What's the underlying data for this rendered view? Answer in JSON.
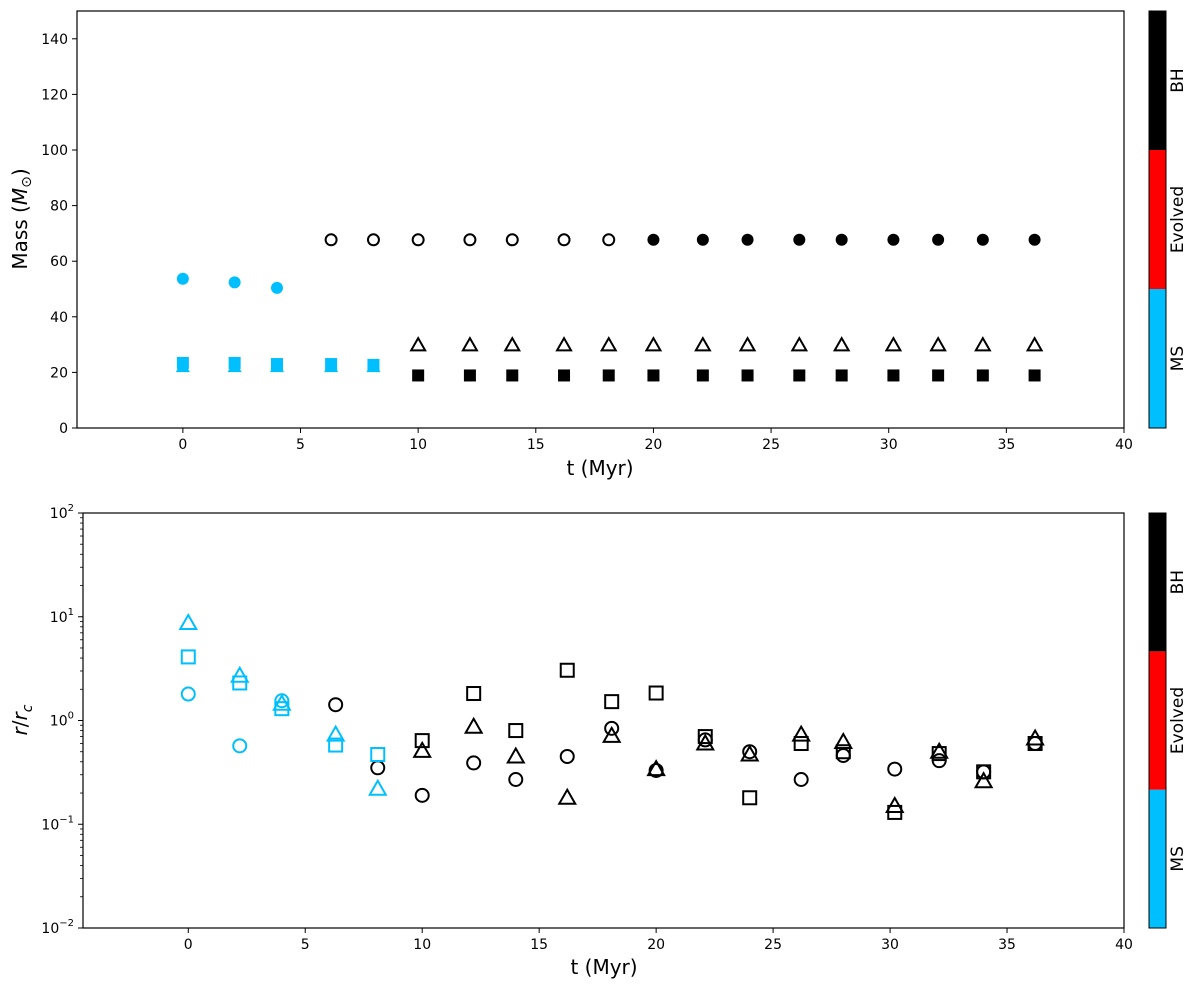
{
  "colors": {
    "MS": "#00bfff",
    "Evolved": "#ff0000",
    "BH": "#000000"
  },
  "chart_data": [
    {
      "type": "scatter",
      "xlabel": "t (Myr)",
      "ylabel": "Mass (M⊙)",
      "xlim": [
        -4.5,
        40
      ],
      "ylim": [
        0,
        150
      ],
      "yscale": "linear",
      "xticks": [
        0,
        5,
        10,
        15,
        20,
        25,
        30,
        35,
        40
      ],
      "yticks": [
        0,
        20,
        40,
        60,
        80,
        100,
        120,
        140
      ],
      "xtick_labels": [
        "0",
        "5",
        "10",
        "15",
        "20",
        "25",
        "30",
        "35",
        "40"
      ],
      "ytick_labels": [
        "0",
        "20",
        "40",
        "60",
        "80",
        "100",
        "120",
        "140"
      ],
      "colorbar": {
        "labels": [
          "MS",
          "Evolved",
          "BH"
        ]
      },
      "series": [
        {
          "marker": "circle",
          "x": [
            0,
            2.2,
            4.0,
            6.3,
            8.1,
            10.0,
            12.2,
            14.0,
            16.2,
            18.1,
            20.0,
            22.1,
            24.0,
            26.2,
            28.0,
            30.2,
            32.1,
            34.0,
            36.2
          ],
          "y": [
            53.7,
            52.4,
            50.4,
            67.7,
            67.7,
            67.7,
            67.7,
            67.7,
            67.7,
            67.7,
            67.7,
            67.7,
            67.7,
            67.7,
            67.7,
            67.7,
            67.7,
            67.7,
            67.7
          ],
          "stage": [
            "MS",
            "MS",
            "MS",
            "BH",
            "BH",
            "BH",
            "BH",
            "BH",
            "BH",
            "BH",
            "BH",
            "BH",
            "BH",
            "BH",
            "BH",
            "BH",
            "BH",
            "BH",
            "BH"
          ],
          "filled": [
            true,
            true,
            true,
            false,
            false,
            false,
            false,
            false,
            false,
            false,
            true,
            true,
            true,
            true,
            true,
            true,
            true,
            true,
            true
          ]
        },
        {
          "marker": "triangle",
          "x": [
            0,
            2.2,
            4.0,
            6.3,
            8.1,
            10.0,
            12.2,
            14.0,
            16.2,
            18.1,
            20.0,
            22.1,
            24.0,
            26.2,
            28.0,
            30.2,
            32.1,
            34.0,
            36.2
          ],
          "y": [
            22.0,
            22.0,
            22.0,
            22.0,
            22.0,
            29.8,
            29.8,
            29.8,
            29.8,
            29.8,
            29.8,
            29.8,
            29.8,
            29.8,
            29.8,
            29.8,
            29.8,
            29.8,
            29.8
          ],
          "stage": [
            "MS",
            "MS",
            "MS",
            "MS",
            "MS",
            "BH",
            "BH",
            "BH",
            "BH",
            "BH",
            "BH",
            "BH",
            "BH",
            "BH",
            "BH",
            "BH",
            "BH",
            "BH",
            "BH"
          ],
          "filled": [
            true,
            true,
            true,
            true,
            true,
            false,
            false,
            false,
            false,
            false,
            false,
            false,
            false,
            false,
            false,
            false,
            false,
            false,
            false
          ]
        },
        {
          "marker": "square",
          "x": [
            0,
            2.2,
            4.0,
            6.3,
            8.1,
            10.0,
            12.2,
            14.0,
            16.2,
            18.1,
            20.0,
            22.1,
            24.0,
            26.2,
            28.0,
            30.2,
            32.1,
            34.0,
            36.2
          ],
          "y": [
            23.4,
            23.4,
            23.0,
            23.0,
            22.7,
            18.9,
            18.9,
            18.9,
            18.9,
            18.9,
            18.9,
            18.9,
            18.9,
            18.9,
            18.9,
            18.9,
            18.9,
            18.9,
            18.9
          ],
          "stage": [
            "MS",
            "MS",
            "MS",
            "MS",
            "MS",
            "BH",
            "BH",
            "BH",
            "BH",
            "BH",
            "BH",
            "BH",
            "BH",
            "BH",
            "BH",
            "BH",
            "BH",
            "BH",
            "BH"
          ],
          "filled": [
            true,
            true,
            true,
            true,
            true,
            true,
            true,
            true,
            true,
            true,
            true,
            true,
            true,
            true,
            true,
            true,
            true,
            true,
            true
          ]
        }
      ]
    },
    {
      "type": "scatter",
      "xlabel": "t (Myr)",
      "ylabel": "r/rc",
      "xlim": [
        -4.5,
        40
      ],
      "ylim": [
        0.01,
        100
      ],
      "yscale": "log",
      "xticks": [
        0,
        5,
        10,
        15,
        20,
        25,
        30,
        35,
        40
      ],
      "yticks": [
        0.01,
        0.1,
        1,
        10,
        100
      ],
      "xtick_labels": [
        "0",
        "5",
        "10",
        "15",
        "20",
        "25",
        "30",
        "35",
        "40"
      ],
      "ytick_labels": [
        {
          "base": "10",
          "exp": "−2"
        },
        {
          "base": "10",
          "exp": "−1"
        },
        {
          "base": "10",
          "exp": "0"
        },
        {
          "base": "10",
          "exp": "1"
        },
        {
          "base": "10",
          "exp": "2"
        }
      ],
      "colorbar": {
        "labels": [
          "MS",
          "Evolved",
          "BH"
        ]
      },
      "series": [
        {
          "marker": "circle",
          "x": [
            0,
            2.2,
            4.0,
            6.3,
            8.1,
            10.0,
            12.2,
            14.0,
            16.2,
            18.1,
            20.0,
            22.1,
            24.0,
            26.2,
            28.0,
            30.2,
            32.1,
            34.0,
            36.2
          ],
          "y": [
            1.8,
            0.57,
            1.55,
            1.42,
            0.35,
            0.19,
            0.39,
            0.27,
            0.45,
            0.84,
            0.33,
            0.65,
            0.5,
            0.27,
            0.46,
            0.34,
            0.41,
            0.32,
            0.6
          ],
          "stage": [
            "MS",
            "MS",
            "MS",
            "BH",
            "BH",
            "BH",
            "BH",
            "BH",
            "BH",
            "BH",
            "BH",
            "BH",
            "BH",
            "BH",
            "BH",
            "BH",
            "BH",
            "BH",
            "BH"
          ],
          "filled": [
            false,
            false,
            false,
            false,
            false,
            false,
            false,
            false,
            false,
            false,
            false,
            false,
            false,
            false,
            false,
            false,
            false,
            false,
            false
          ]
        },
        {
          "marker": "triangle",
          "x": [
            0,
            2.2,
            4.0,
            6.3,
            8.1,
            10.0,
            12.2,
            14.0,
            16.2,
            18.1,
            20.0,
            22.1,
            24.0,
            26.2,
            28.0,
            30.2,
            32.1,
            34.0,
            36.2
          ],
          "y": [
            8.7,
            2.7,
            1.45,
            0.73,
            0.22,
            0.51,
            0.87,
            0.45,
            0.18,
            0.71,
            0.34,
            0.6,
            0.47,
            0.73,
            0.62,
            0.15,
            0.5,
            0.26,
            0.67
          ],
          "stage": [
            "MS",
            "MS",
            "MS",
            "MS",
            "MS",
            "BH",
            "BH",
            "BH",
            "BH",
            "BH",
            "BH",
            "BH",
            "BH",
            "BH",
            "BH",
            "BH",
            "BH",
            "BH",
            "BH"
          ],
          "filled": [
            false,
            false,
            false,
            false,
            false,
            false,
            false,
            false,
            false,
            false,
            false,
            false,
            false,
            false,
            false,
            false,
            false,
            false,
            false
          ]
        },
        {
          "marker": "square",
          "x": [
            0,
            2.2,
            4.0,
            6.3,
            8.1,
            10.0,
            12.2,
            14.0,
            16.2,
            18.1,
            20.0,
            22.1,
            24.0,
            26.2,
            28.0,
            30.2,
            32.1,
            34.0,
            36.2
          ],
          "y": [
            4.1,
            2.3,
            1.3,
            0.58,
            0.47,
            0.64,
            1.82,
            0.8,
            3.05,
            1.52,
            1.84,
            0.7,
            0.18,
            0.6,
            0.5,
            0.13,
            0.48,
            0.32,
            0.6
          ],
          "stage": [
            "MS",
            "MS",
            "MS",
            "MS",
            "MS",
            "BH",
            "BH",
            "BH",
            "BH",
            "BH",
            "BH",
            "BH",
            "BH",
            "BH",
            "BH",
            "BH",
            "BH",
            "BH",
            "BH"
          ],
          "filled": [
            false,
            false,
            false,
            false,
            false,
            false,
            false,
            false,
            false,
            false,
            false,
            false,
            false,
            false,
            false,
            false,
            false,
            false,
            false
          ]
        }
      ]
    }
  ]
}
